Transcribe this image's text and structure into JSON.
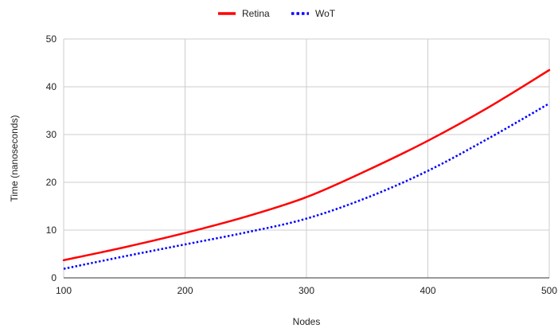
{
  "chart_data": {
    "type": "line",
    "title": "",
    "xlabel": "Nodes",
    "ylabel": "Time (nanoseconds)",
    "xlim": [
      100,
      500
    ],
    "ylim": [
      0,
      50
    ],
    "xticks": [
      100,
      200,
      300,
      400,
      500
    ],
    "yticks": [
      0,
      10,
      20,
      30,
      40,
      50
    ],
    "grid": true,
    "legend_position": "top-center",
    "series": [
      {
        "name": "Retina",
        "color": "#ff0000",
        "style": "solid",
        "x": [
          100,
          150,
          200,
          250,
          300,
          350,
          400,
          450,
          500
        ],
        "y": [
          3.7,
          6.4,
          9.4,
          12.8,
          16.9,
          22.5,
          28.7,
          35.7,
          43.5
        ]
      },
      {
        "name": "WoT",
        "color": "#0000ff",
        "style": "dotted",
        "x": [
          100,
          150,
          200,
          250,
          300,
          350,
          400,
          450,
          500
        ],
        "y": [
          1.9,
          4.5,
          7.0,
          9.5,
          12.4,
          16.8,
          22.4,
          29.2,
          36.5
        ]
      }
    ]
  }
}
